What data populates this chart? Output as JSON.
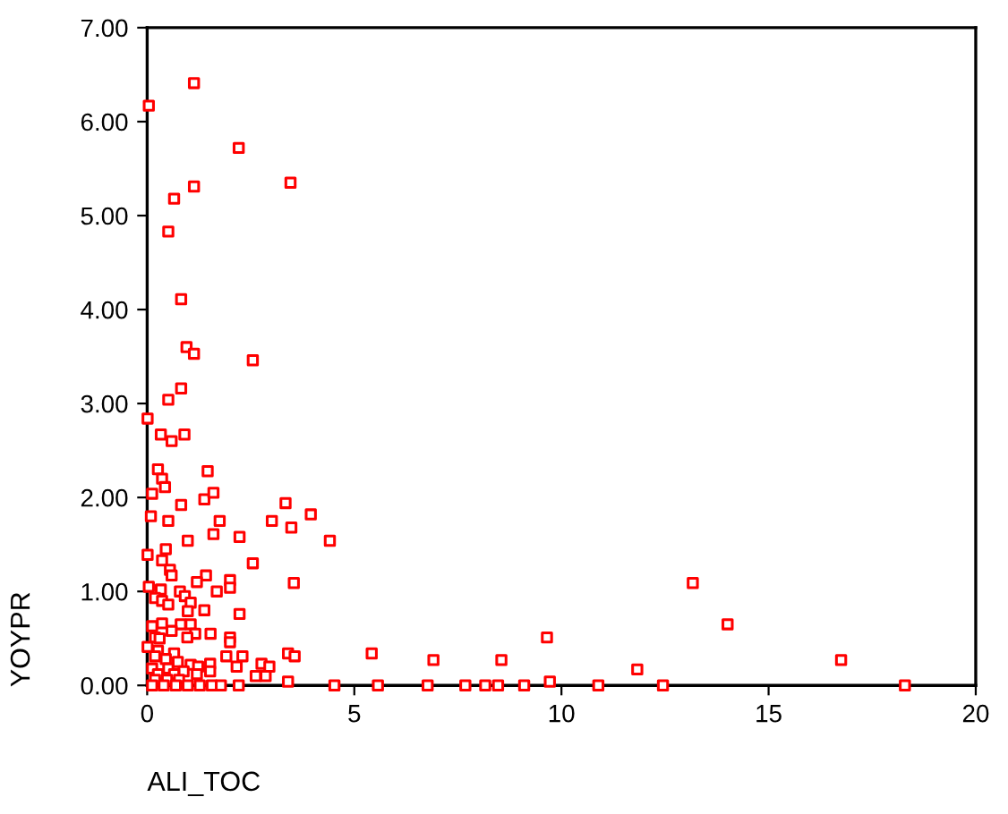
{
  "chart_data": {
    "type": "scatter",
    "xlabel": "ALI_TOC",
    "ylabel": "YOYPR",
    "xlim": [
      0,
      20
    ],
    "xticks": [
      0,
      5,
      10,
      15,
      20
    ],
    "ylim": [
      0,
      7
    ],
    "yticks": [
      {
        "value": 0,
        "label": "0.00"
      },
      {
        "value": 1,
        "label": "1.00"
      },
      {
        "value": 2,
        "label": "2.00"
      },
      {
        "value": 3,
        "label": "3.00"
      },
      {
        "value": 4,
        "label": "4.00"
      },
      {
        "value": 5,
        "label": "5.00"
      },
      {
        "value": 6,
        "label": "6.00"
      },
      {
        "value": 7,
        "label": "7.00"
      }
    ],
    "grid": false,
    "marker": "square",
    "series": [
      {
        "color": "#ff0000",
        "x": [
          1.13,
          0.04,
          2.21,
          1.13,
          3.46,
          0.65,
          0.51,
          0.82,
          0.95,
          1.13,
          2.55,
          0.82,
          0.51,
          0.01,
          0.33,
          0.59,
          0.9,
          0.26,
          0.36,
          0.43,
          1.46,
          0.12,
          0.82,
          1.38,
          1.6,
          3.34,
          3.95,
          3.01,
          3.48,
          1.75,
          0.09,
          0.51,
          1.6,
          2.23,
          0.98,
          4.41,
          0.45,
          0.01,
          0.36,
          2.55,
          0.55,
          0.59,
          1.42,
          1.2,
          2.0,
          3.54,
          0.04,
          0.33,
          0.79,
          1.68,
          2.0,
          0.19,
          0.91,
          1.05,
          0.36,
          0.51,
          1.38,
          2.23,
          0.98,
          0.12,
          0.36,
          0.81,
          1.05,
          0.59,
          1.16,
          1.53,
          2.0,
          0.97,
          0.19,
          0.3,
          2.0,
          0.01,
          0.26,
          0.65,
          0.19,
          1.91,
          2.3,
          3.4,
          3.56,
          5.42,
          0.45,
          0.74,
          1.05,
          1.23,
          1.52,
          2.76,
          2.16,
          2.95,
          0.12,
          0.51,
          0.88,
          0.26,
          0.65,
          1.2,
          2.62,
          2.86,
          1.52,
          0.19,
          0.48,
          0.77,
          3.4,
          0.12,
          0.4,
          0.69,
          0.98,
          1.27,
          1.56,
          1.78,
          2.21,
          4.52,
          5.57,
          6.91,
          8.55,
          9.65,
          13.17,
          14.01,
          16.75,
          11.83,
          9.72,
          6.77,
          7.68,
          8.16,
          8.47,
          9.1,
          10.89,
          12.45,
          18.29
        ],
        "values": [
          6.41,
          6.17,
          5.72,
          5.31,
          5.35,
          5.18,
          4.83,
          4.11,
          3.6,
          3.53,
          3.46,
          3.16,
          3.04,
          2.84,
          2.67,
          2.6,
          2.67,
          2.3,
          2.2,
          2.11,
          2.28,
          2.04,
          1.92,
          1.98,
          2.05,
          1.94,
          1.82,
          1.75,
          1.68,
          1.75,
          1.8,
          1.75,
          1.61,
          1.58,
          1.54,
          1.54,
          1.45,
          1.39,
          1.33,
          1.3,
          1.23,
          1.17,
          1.17,
          1.1,
          1.12,
          1.09,
          1.05,
          1.02,
          1.0,
          1.0,
          1.04,
          0.93,
          0.95,
          0.88,
          0.9,
          0.86,
          0.8,
          0.76,
          0.79,
          0.63,
          0.66,
          0.65,
          0.65,
          0.58,
          0.55,
          0.55,
          0.51,
          0.51,
          0.51,
          0.5,
          0.46,
          0.41,
          0.37,
          0.34,
          0.31,
          0.31,
          0.31,
          0.34,
          0.31,
          0.34,
          0.28,
          0.25,
          0.22,
          0.2,
          0.23,
          0.23,
          0.2,
          0.2,
          0.18,
          0.18,
          0.15,
          0.12,
          0.12,
          0.12,
          0.1,
          0.1,
          0.15,
          0.06,
          0.06,
          0.06,
          0.04,
          0,
          0,
          0,
          0,
          0,
          0,
          0,
          0,
          0,
          0,
          0.27,
          0.27,
          0.51,
          1.09,
          0.65,
          0.27,
          0.17,
          0.04,
          0,
          0,
          0,
          0,
          0,
          0,
          0,
          0
        ]
      }
    ]
  }
}
